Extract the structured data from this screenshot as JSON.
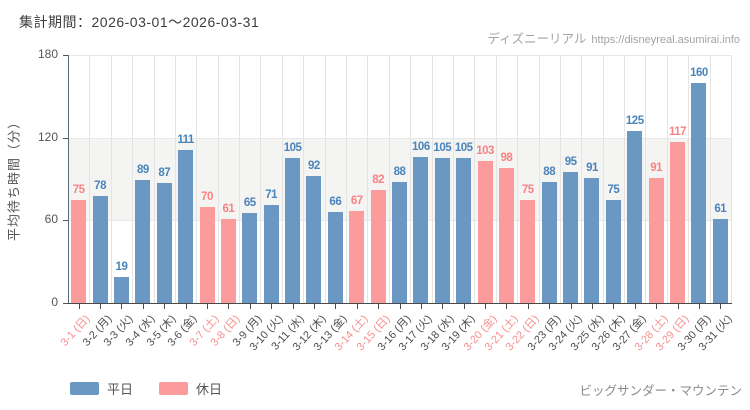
{
  "header": {
    "period_label": "集計期間：2026-03-01～2026-03-31"
  },
  "watermark": {
    "site_name": "ディズニーリアル",
    "site_url": "https://disneyreal.asumirai.info"
  },
  "chart_data": {
    "type": "bar",
    "title": "",
    "xlabel": "",
    "ylabel": "平均待ち時間（分）",
    "ylim": [
      0,
      180
    ],
    "yticks": [
      0,
      60,
      120,
      180
    ],
    "grid_band": [
      60,
      120
    ],
    "grid": "vertical-lines-and-band",
    "legend_position": "bottom-left",
    "categories": [
      "3-1 (日)",
      "3-2 (月)",
      "3-3 (火)",
      "3-4 (水)",
      "3-5 (木)",
      "3-6 (金)",
      "3-7 (土)",
      "3-8 (日)",
      "3-9 (月)",
      "3-10 (火)",
      "3-11 (水)",
      "3-12 (木)",
      "3-13 (金)",
      "3-14 (土)",
      "3-15 (日)",
      "3-16 (月)",
      "3-17 (火)",
      "3-18 (水)",
      "3-19 (木)",
      "3-20 (金)",
      "3-21 (土)",
      "3-22 (日)",
      "3-23 (月)",
      "3-24 (火)",
      "3-25 (水)",
      "3-26 (木)",
      "3-27 (金)",
      "3-28 (土)",
      "3-29 (日)",
      "3-30 (月)",
      "3-31 (火)"
    ],
    "values": [
      75,
      78,
      19,
      89,
      87,
      111,
      70,
      61,
      65,
      71,
      105,
      92,
      66,
      67,
      82,
      88,
      106,
      105,
      105,
      103,
      98,
      75,
      88,
      95,
      91,
      75,
      125,
      91,
      117,
      160,
      61
    ],
    "day_types": [
      "holiday",
      "weekday",
      "weekday",
      "weekday",
      "weekday",
      "weekday",
      "holiday",
      "holiday",
      "weekday",
      "weekday",
      "weekday",
      "weekday",
      "weekday",
      "holiday",
      "holiday",
      "weekday",
      "weekday",
      "weekday",
      "weekday",
      "holiday",
      "holiday",
      "holiday",
      "weekday",
      "weekday",
      "weekday",
      "weekday",
      "weekday",
      "holiday",
      "holiday",
      "weekday",
      "weekday"
    ],
    "colors": {
      "weekday": "#6b97c3",
      "holiday": "#fc9b9b",
      "weekday_value_label": "#4a84ba",
      "holiday_value_label": "#fa8282",
      "weekday_tick_label": "#4d4d4d",
      "holiday_tick_label": "#f59090"
    }
  },
  "legend": {
    "items": [
      {
        "label": "平日",
        "series": "weekday"
      },
      {
        "label": "休日",
        "series": "holiday"
      }
    ]
  },
  "footer": {
    "attraction_name": "ビッグサンダー・マウンテン"
  }
}
